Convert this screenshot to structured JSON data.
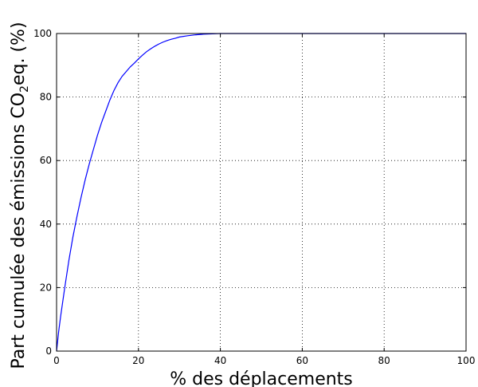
{
  "chart_data": {
    "type": "line",
    "title": "",
    "xlabel": "% des déplacements",
    "ylabel_main": "Part cumulée des émissions CO",
    "ylabel_sub": "2",
    "ylabel_tail": "eq. (%)",
    "xlim": [
      0,
      100
    ],
    "ylim": [
      0,
      100
    ],
    "x_ticks": [
      0,
      20,
      40,
      60,
      80,
      100
    ],
    "y_ticks": [
      0,
      20,
      40,
      60,
      80,
      100
    ],
    "x_tick_labels": [
      "0",
      "20",
      "40",
      "60",
      "80",
      "100"
    ],
    "y_tick_labels": [
      "0",
      "20",
      "40",
      "60",
      "80",
      "100"
    ],
    "grid": true,
    "series": [
      {
        "color": "#0000ff",
        "x": [
          0,
          0.5,
          1,
          2,
          3,
          4,
          5,
          6,
          7,
          8,
          9,
          10,
          11,
          12,
          13,
          14,
          15,
          16,
          17,
          18,
          19,
          20,
          21,
          22,
          23,
          24,
          25,
          26,
          27,
          28,
          29,
          30,
          32,
          34,
          36,
          38,
          40,
          45,
          50,
          60,
          70,
          80,
          90,
          100
        ],
        "y": [
          0,
          6,
          11,
          20,
          28.5,
          36,
          42.5,
          48.5,
          54,
          59,
          63.5,
          68,
          72,
          75.5,
          79,
          82,
          84.5,
          86.5,
          88,
          89.5,
          90.7,
          92,
          93.2,
          94.3,
          95.2,
          96,
          96.7,
          97.3,
          97.8,
          98.2,
          98.5,
          98.9,
          99.3,
          99.6,
          99.8,
          99.9,
          100,
          100,
          100,
          100,
          100,
          100,
          100,
          100
        ]
      }
    ]
  }
}
